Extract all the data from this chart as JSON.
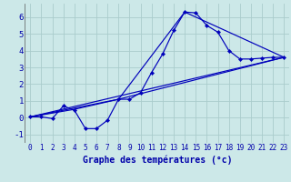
{
  "title": "Graphe des températures (°c)",
  "bg_color": "#cce8e8",
  "grid_color": "#aacccc",
  "line_color": "#0000bb",
  "xlim": [
    -0.5,
    23.5
  ],
  "ylim": [
    -1.5,
    6.8
  ],
  "xticks": [
    0,
    1,
    2,
    3,
    4,
    5,
    6,
    7,
    8,
    9,
    10,
    11,
    12,
    13,
    14,
    15,
    16,
    17,
    18,
    19,
    20,
    21,
    22,
    23
  ],
  "yticks": [
    -1,
    0,
    1,
    2,
    3,
    4,
    5,
    6
  ],
  "curve1_x": [
    0,
    1,
    2,
    3,
    4,
    5,
    6,
    7,
    8,
    9,
    10,
    11,
    12,
    13,
    14,
    15,
    16,
    17,
    18,
    19,
    20,
    21,
    22,
    23
  ],
  "curve1_y": [
    0.05,
    0.05,
    -0.05,
    0.7,
    0.45,
    -0.65,
    -0.65,
    -0.15,
    1.1,
    1.1,
    1.5,
    2.7,
    3.8,
    5.2,
    6.3,
    6.25,
    5.5,
    5.1,
    4.0,
    3.5,
    3.5,
    3.55,
    3.6,
    3.6
  ],
  "curve2_x": [
    0,
    23
  ],
  "curve2_y": [
    0.05,
    3.6
  ],
  "curve3_x": [
    0,
    8,
    23
  ],
  "curve3_y": [
    0.05,
    1.1,
    3.6
  ],
  "curve4_x": [
    0,
    4,
    8,
    14,
    23
  ],
  "curve4_y": [
    0.05,
    0.5,
    1.1,
    6.3,
    3.6
  ],
  "xlabel_fontsize": 7,
  "tick_fontsize_x": 5.5,
  "tick_fontsize_y": 6.5,
  "lw": 0.85,
  "ms": 2.2
}
